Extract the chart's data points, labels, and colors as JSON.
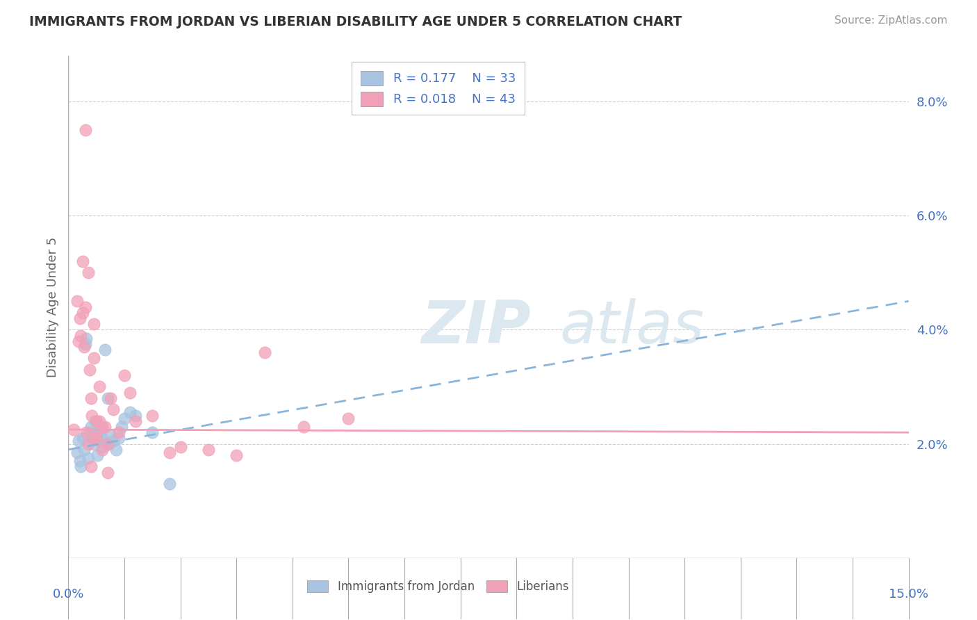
{
  "title": "IMMIGRANTS FROM JORDAN VS LIBERIAN DISABILITY AGE UNDER 5 CORRELATION CHART",
  "source": "Source: ZipAtlas.com",
  "ylabel": "Disability Age Under 5",
  "xlim": [
    0.0,
    15.0
  ],
  "ylim": [
    0.0,
    8.8
  ],
  "yticks": [
    2.0,
    4.0,
    6.0,
    8.0
  ],
  "ytick_labels": [
    "2.0%",
    "4.0%",
    "6.0%",
    "8.0%"
  ],
  "legend_label1": "R = 0.177    N = 33",
  "legend_label2": "R = 0.018    N = 43",
  "color_jordan": "#a8c4e0",
  "color_liberian": "#f2a0b8",
  "jordan_line_color": "#8ab4d8",
  "liberian_line_color": "#f2a0b8",
  "jordan_x": [
    0.15,
    0.18,
    0.2,
    0.22,
    0.25,
    0.28,
    0.3,
    0.32,
    0.35,
    0.38,
    0.4,
    0.42,
    0.45,
    0.48,
    0.5,
    0.52,
    0.55,
    0.58,
    0.6,
    0.62,
    0.65,
    0.7,
    0.72,
    0.75,
    0.8,
    0.85,
    0.9,
    0.95,
    1.0,
    1.1,
    1.2,
    1.5,
    1.8
  ],
  "jordan_y": [
    1.85,
    2.05,
    1.7,
    1.6,
    2.1,
    1.9,
    3.75,
    3.85,
    1.75,
    2.2,
    2.3,
    2.1,
    2.0,
    2.4,
    2.15,
    1.8,
    2.05,
    2.25,
    2.1,
    1.95,
    3.65,
    2.8,
    2.0,
    2.15,
    2.05,
    1.9,
    2.1,
    2.3,
    2.45,
    2.55,
    2.5,
    2.2,
    1.3
  ],
  "liberian_x": [
    0.1,
    0.15,
    0.18,
    0.2,
    0.22,
    0.25,
    0.28,
    0.3,
    0.32,
    0.35,
    0.38,
    0.4,
    0.42,
    0.45,
    0.48,
    0.5,
    0.55,
    0.6,
    0.65,
    0.7,
    0.75,
    0.8,
    0.9,
    1.0,
    1.1,
    1.2,
    1.5,
    1.8,
    2.0,
    2.5,
    3.0,
    3.5,
    4.2,
    5.0,
    0.25,
    0.35,
    0.45,
    0.3,
    0.5,
    0.6,
    0.4,
    0.55,
    0.7
  ],
  "liberian_y": [
    2.25,
    4.5,
    3.8,
    4.2,
    3.9,
    4.3,
    3.7,
    4.4,
    2.2,
    2.0,
    3.3,
    2.8,
    2.5,
    3.5,
    2.1,
    2.4,
    3.0,
    1.9,
    2.3,
    2.0,
    2.8,
    2.6,
    2.2,
    3.2,
    2.9,
    2.4,
    2.5,
    1.85,
    1.95,
    1.9,
    1.8,
    3.6,
    2.3,
    2.45,
    5.2,
    5.0,
    4.1,
    7.5,
    2.1,
    2.3,
    1.6,
    2.4,
    1.5
  ]
}
